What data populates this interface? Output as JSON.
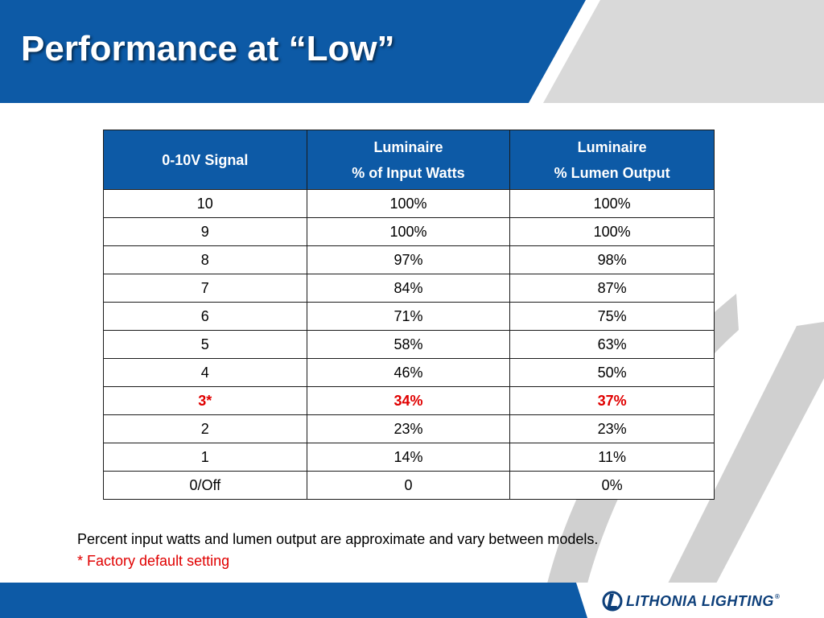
{
  "slide": {
    "title": "Performance at “Low”"
  },
  "colors": {
    "header_blue": "#0d5aa6",
    "highlight_red": "#e00000",
    "stripe_gray": "#d7d7d7"
  },
  "table": {
    "headers": [
      {
        "line1": "0-10V Signal",
        "line2": ""
      },
      {
        "line1": "Luminaire",
        "line2": "% of Input Watts"
      },
      {
        "line1": "Luminaire",
        "line2": "% Lumen Output"
      }
    ],
    "rows": [
      {
        "signal": "10",
        "input_watts": "100%",
        "lumen_output": "100%",
        "highlight": false
      },
      {
        "signal": "9",
        "input_watts": "100%",
        "lumen_output": "100%",
        "highlight": false
      },
      {
        "signal": "8",
        "input_watts": "97%",
        "lumen_output": "98%",
        "highlight": false
      },
      {
        "signal": "7",
        "input_watts": "84%",
        "lumen_output": "87%",
        "highlight": false
      },
      {
        "signal": "6",
        "input_watts": "71%",
        "lumen_output": "75%",
        "highlight": false
      },
      {
        "signal": "5",
        "input_watts": "58%",
        "lumen_output": "63%",
        "highlight": false
      },
      {
        "signal": "4",
        "input_watts": "46%",
        "lumen_output": "50%",
        "highlight": false
      },
      {
        "signal": "3*",
        "input_watts": "34%",
        "lumen_output": "37%",
        "highlight": true
      },
      {
        "signal": "2",
        "input_watts": "23%",
        "lumen_output": "23%",
        "highlight": false
      },
      {
        "signal": "1",
        "input_watts": "14%",
        "lumen_output": "11%",
        "highlight": false
      },
      {
        "signal": "0/Off",
        "input_watts": "0",
        "lumen_output": "0%",
        "highlight": false
      }
    ]
  },
  "footnotes": {
    "note": "Percent input watts and lumen output are approximate and vary between models.",
    "default_setting": "* Factory default setting"
  },
  "logo": {
    "text": "LITHONIA LIGHTING",
    "registered": "®",
    "icon": "lithonia-logo-mark"
  }
}
